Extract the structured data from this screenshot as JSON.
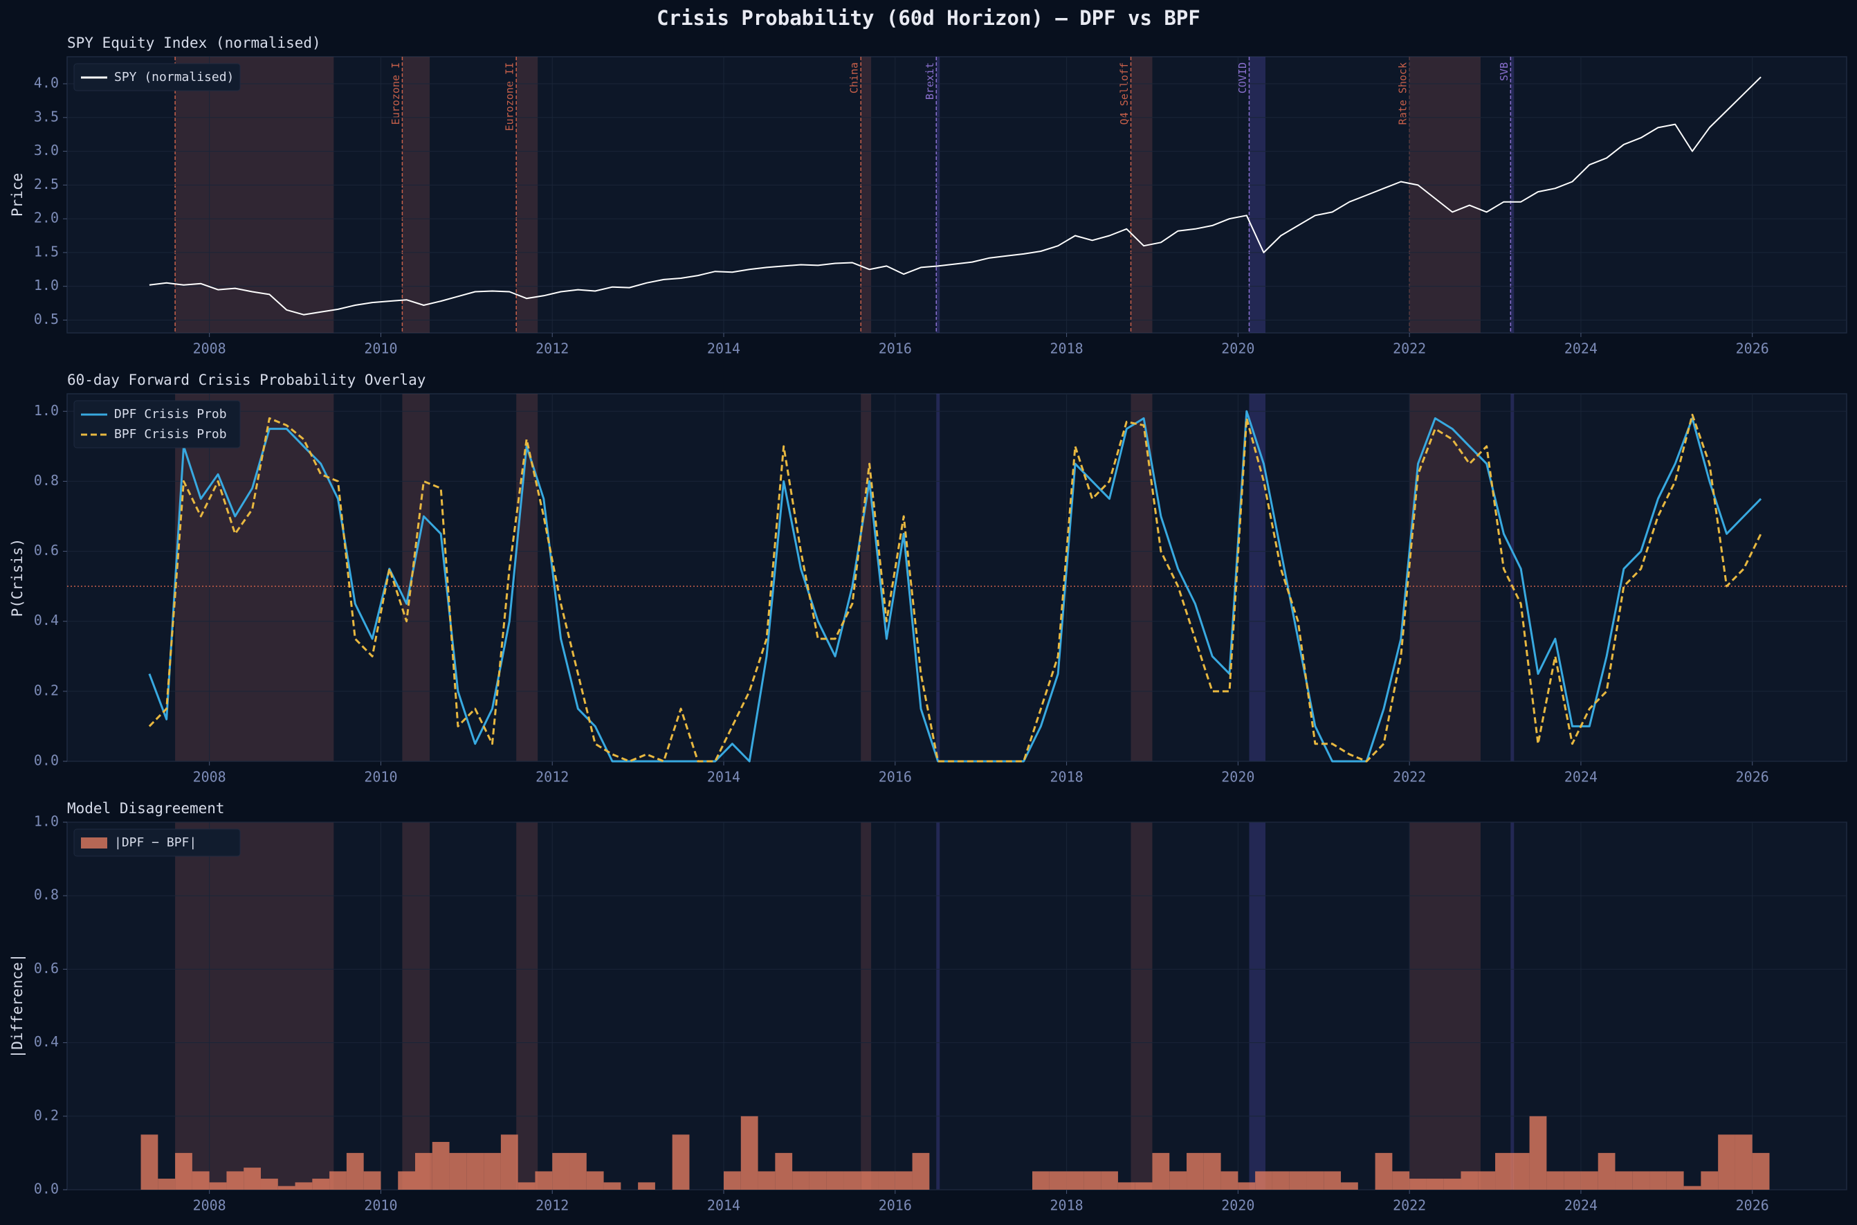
{
  "title": "Crisis Probability (60d Horizon)  —  DPF vs BPF",
  "crises": [
    {
      "start": 2007.6,
      "end": 2009.45,
      "color": "#c8604a"
    },
    {
      "start": 2010.25,
      "end": 2010.57,
      "label": "Eurozone I",
      "color": "#c8604a"
    },
    {
      "start": 2011.58,
      "end": 2011.83,
      "label": "Eurozone II",
      "color": "#c8604a"
    },
    {
      "start": 2015.6,
      "end": 2015.72,
      "label": "China",
      "color": "#c8604a"
    },
    {
      "start": 2016.48,
      "end": 2016.52,
      "label": "Brexit",
      "color": "#8a70d0"
    },
    {
      "start": 2018.75,
      "end": 2019.0,
      "label": "Q4 Selloff",
      "color": "#c8604a"
    },
    {
      "start": 2020.13,
      "end": 2020.32,
      "label": "COVID",
      "color": "#8a70d0"
    },
    {
      "start": 2022.0,
      "end": 2022.83,
      "label": "Rate Shock",
      "color": "#c8604a"
    },
    {
      "start": 2023.18,
      "end": 2023.22,
      "label": "SVB",
      "color": "#8a70d0"
    }
  ],
  "chart_data": [
    {
      "type": "line",
      "title": "SPY Equity Index (normalised)",
      "ylabel": "Price",
      "legend": "upper left",
      "grid": true,
      "crisis_labels": true,
      "xlim": [
        2006.34,
        2027.1
      ],
      "xticks": [
        2008,
        2010,
        2012,
        2014,
        2016,
        2018,
        2020,
        2022,
        2024,
        2026
      ],
      "ylim": [
        0.31,
        4.4
      ],
      "yticks": [
        {
          "value": 0.5,
          "label": "0.5"
        },
        {
          "value": 1,
          "label": "1.0"
        },
        {
          "value": 1.5,
          "label": "1.5"
        },
        {
          "value": 2,
          "label": "2.0"
        },
        {
          "value": 2.5,
          "label": "2.5"
        },
        {
          "value": 3,
          "label": "3.0"
        },
        {
          "value": 3.5,
          "label": "3.5"
        },
        {
          "value": 4,
          "label": "4.0"
        }
      ],
      "x": [
        2007.3,
        2007.5,
        2007.7,
        2007.9,
        2008.1,
        2008.3,
        2008.5,
        2008.7,
        2008.9,
        2009.1,
        2009.3,
        2009.5,
        2009.7,
        2009.9,
        2010.1,
        2010.3,
        2010.5,
        2010.7,
        2010.9,
        2011.1,
        2011.3,
        2011.5,
        2011.7,
        2011.9,
        2012.1,
        2012.3,
        2012.5,
        2012.7,
        2012.9,
        2013.1,
        2013.3,
        2013.5,
        2013.7,
        2013.9,
        2014.1,
        2014.3,
        2014.5,
        2014.7,
        2014.9,
        2015.1,
        2015.3,
        2015.5,
        2015.7,
        2015.9,
        2016.1,
        2016.3,
        2016.5,
        2016.7,
        2016.9,
        2017.1,
        2017.3,
        2017.5,
        2017.7,
        2017.9,
        2018.1,
        2018.3,
        2018.5,
        2018.7,
        2018.9,
        2019.1,
        2019.3,
        2019.5,
        2019.7,
        2019.9,
        2020.1,
        2020.3,
        2020.5,
        2020.7,
        2020.9,
        2021.1,
        2021.3,
        2021.5,
        2021.7,
        2021.9,
        2022.1,
        2022.3,
        2022.5,
        2022.7,
        2022.9,
        2023.1,
        2023.3,
        2023.5,
        2023.7,
        2023.9,
        2024.1,
        2024.3,
        2024.5,
        2024.7,
        2024.9,
        2025.1,
        2025.3,
        2025.5,
        2025.7,
        2025.9,
        2026.1
      ],
      "series": [
        {
          "name": "SPY (normalised)",
          "color": "#ffffff",
          "values": [
            1.02,
            1.05,
            1.02,
            1.04,
            0.95,
            0.97,
            0.92,
            0.88,
            0.65,
            0.58,
            0.62,
            0.66,
            0.72,
            0.76,
            0.78,
            0.8,
            0.72,
            0.78,
            0.85,
            0.92,
            0.93,
            0.92,
            0.82,
            0.86,
            0.92,
            0.95,
            0.93,
            0.99,
            0.98,
            1.05,
            1.1,
            1.12,
            1.16,
            1.22,
            1.21,
            1.25,
            1.28,
            1.3,
            1.32,
            1.31,
            1.34,
            1.35,
            1.25,
            1.3,
            1.18,
            1.28,
            1.3,
            1.33,
            1.36,
            1.42,
            1.45,
            1.48,
            1.52,
            1.6,
            1.75,
            1.68,
            1.75,
            1.85,
            1.6,
            1.65,
            1.82,
            1.85,
            1.9,
            2.0,
            2.05,
            1.5,
            1.75,
            1.9,
            2.05,
            2.1,
            2.25,
            2.35,
            2.45,
            2.55,
            2.5,
            2.3,
            2.1,
            2.2,
            2.1,
            2.25,
            2.25,
            2.4,
            2.45,
            2.55,
            2.8,
            2.9,
            3.1,
            3.2,
            3.35,
            3.4,
            3.0,
            3.35,
            3.6,
            3.85,
            4.1
          ]
        }
      ]
    },
    {
      "type": "line",
      "title": "60-day Forward Crisis Probability Overlay",
      "ylabel": "P(Crisis)",
      "legend": "upper left",
      "grid": true,
      "threshold": 0.5,
      "threshold_color": "#c8604a",
      "xlim": [
        2006.34,
        2027.1
      ],
      "xticks": [
        2008,
        2010,
        2012,
        2014,
        2016,
        2018,
        2020,
        2022,
        2024,
        2026
      ],
      "ylim": [
        0,
        1.05
      ],
      "yticks": [
        {
          "value": 0,
          "label": "0.0"
        },
        {
          "value": 0.2,
          "label": "0.2"
        },
        {
          "value": 0.4,
          "label": "0.4"
        },
        {
          "value": 0.6,
          "label": "0.6"
        },
        {
          "value": 0.8,
          "label": "0.8"
        },
        {
          "value": 1,
          "label": "1.0"
        }
      ],
      "x": [
        2007.3,
        2007.5,
        2007.7,
        2007.9,
        2008.1,
        2008.3,
        2008.5,
        2008.7,
        2008.9,
        2009.1,
        2009.3,
        2009.5,
        2009.7,
        2009.9,
        2010.1,
        2010.3,
        2010.5,
        2010.7,
        2010.9,
        2011.1,
        2011.3,
        2011.5,
        2011.7,
        2011.9,
        2012.1,
        2012.3,
        2012.5,
        2012.7,
        2012.9,
        2013.1,
        2013.3,
        2013.5,
        2013.7,
        2013.9,
        2014.1,
        2014.3,
        2014.5,
        2014.7,
        2014.9,
        2015.1,
        2015.3,
        2015.5,
        2015.7,
        2015.9,
        2016.1,
        2016.3,
        2016.5,
        2016.7,
        2016.9,
        2017.1,
        2017.3,
        2017.5,
        2017.7,
        2017.9,
        2018.1,
        2018.3,
        2018.5,
        2018.7,
        2018.9,
        2019.1,
        2019.3,
        2019.5,
        2019.7,
        2019.9,
        2020.1,
        2020.3,
        2020.5,
        2020.7,
        2020.9,
        2021.1,
        2021.3,
        2021.5,
        2021.7,
        2021.9,
        2022.1,
        2022.3,
        2022.5,
        2022.7,
        2022.9,
        2023.1,
        2023.3,
        2023.5,
        2023.7,
        2023.9,
        2024.1,
        2024.3,
        2024.5,
        2024.7,
        2024.9,
        2025.1,
        2025.3,
        2025.5,
        2025.7,
        2025.9,
        2026.1
      ],
      "series": [
        {
          "name": "DPF Crisis Prob",
          "color": "#38a9e0",
          "linestyle": "solid",
          "values": [
            0.25,
            0.12,
            0.9,
            0.75,
            0.82,
            0.7,
            0.78,
            0.95,
            0.95,
            0.9,
            0.85,
            0.75,
            0.45,
            0.35,
            0.55,
            0.45,
            0.7,
            0.65,
            0.2,
            0.05,
            0.15,
            0.4,
            0.9,
            0.75,
            0.35,
            0.15,
            0.1,
            0,
            0,
            0,
            0,
            0,
            0,
            0,
            0.05,
            0,
            0.3,
            0.8,
            0.55,
            0.4,
            0.3,
            0.5,
            0.8,
            0.35,
            0.65,
            0.15,
            0,
            0,
            0,
            0,
            0,
            0,
            0.1,
            0.25,
            0.85,
            0.8,
            0.75,
            0.95,
            0.98,
            0.7,
            0.55,
            0.45,
            0.3,
            0.25,
            1,
            0.85,
            0.6,
            0.35,
            0.1,
            0,
            0,
            0,
            0.15,
            0.35,
            0.85,
            0.98,
            0.95,
            0.9,
            0.85,
            0.65,
            0.55,
            0.25,
            0.35,
            0.1,
            0.1,
            0.3,
            0.55,
            0.6,
            0.75,
            0.85,
            0.98,
            0.8,
            0.65,
            0.7,
            0.75
          ]
        },
        {
          "name": "BPF Crisis Prob",
          "color": "#e8b840",
          "linestyle": "dashed",
          "values": [
            0.1,
            0.15,
            0.8,
            0.7,
            0.8,
            0.65,
            0.72,
            0.98,
            0.96,
            0.92,
            0.82,
            0.8,
            0.35,
            0.3,
            0.55,
            0.4,
            0.8,
            0.78,
            0.1,
            0.15,
            0.05,
            0.55,
            0.92,
            0.7,
            0.45,
            0.25,
            0.05,
            0.02,
            0,
            0.02,
            0,
            0.15,
            0,
            0,
            0.1,
            0.2,
            0.35,
            0.9,
            0.6,
            0.35,
            0.35,
            0.45,
            0.85,
            0.4,
            0.7,
            0.25,
            0,
            0,
            0,
            0,
            0,
            0,
            0.15,
            0.3,
            0.9,
            0.75,
            0.8,
            0.97,
            0.96,
            0.6,
            0.5,
            0.35,
            0.2,
            0.2,
            0.98,
            0.8,
            0.55,
            0.4,
            0.05,
            0.05,
            0.02,
            0,
            0.05,
            0.3,
            0.82,
            0.95,
            0.92,
            0.85,
            0.9,
            0.55,
            0.45,
            0.05,
            0.3,
            0.05,
            0.15,
            0.2,
            0.5,
            0.55,
            0.7,
            0.8,
            0.99,
            0.85,
            0.5,
            0.55,
            0.65
          ]
        }
      ]
    },
    {
      "type": "bar",
      "title": "Model Disagreement",
      "ylabel": "|Difference|",
      "legend": "upper left",
      "grid": true,
      "xlim": [
        2006.34,
        2027.1
      ],
      "xticks": [
        2008,
        2010,
        2012,
        2014,
        2016,
        2018,
        2020,
        2022,
        2024,
        2026
      ],
      "ylim": [
        0,
        1
      ],
      "yticks": [
        {
          "value": 0,
          "label": "0.0"
        },
        {
          "value": 0.2,
          "label": "0.2"
        },
        {
          "value": 0.4,
          "label": "0.4"
        },
        {
          "value": 0.6,
          "label": "0.6"
        },
        {
          "value": 0.8,
          "label": "0.8"
        },
        {
          "value": 1,
          "label": "1.0"
        }
      ],
      "x": [
        2007.3,
        2007.5,
        2007.7,
        2007.9,
        2008.1,
        2008.3,
        2008.5,
        2008.7,
        2008.9,
        2009.1,
        2009.3,
        2009.5,
        2009.7,
        2009.9,
        2010.1,
        2010.3,
        2010.5,
        2010.7,
        2010.9,
        2011.1,
        2011.3,
        2011.5,
        2011.7,
        2011.9,
        2012.1,
        2012.3,
        2012.5,
        2012.7,
        2012.9,
        2013.1,
        2013.3,
        2013.5,
        2013.7,
        2013.9,
        2014.1,
        2014.3,
        2014.5,
        2014.7,
        2014.9,
        2015.1,
        2015.3,
        2015.5,
        2015.7,
        2015.9,
        2016.1,
        2016.3,
        2016.5,
        2016.7,
        2016.9,
        2017.1,
        2017.3,
        2017.5,
        2017.7,
        2017.9,
        2018.1,
        2018.3,
        2018.5,
        2018.7,
        2018.9,
        2019.1,
        2019.3,
        2019.5,
        2019.7,
        2019.9,
        2020.1,
        2020.3,
        2020.5,
        2020.7,
        2020.9,
        2021.1,
        2021.3,
        2021.5,
        2021.7,
        2021.9,
        2022.1,
        2022.3,
        2022.5,
        2022.7,
        2022.9,
        2023.1,
        2023.3,
        2023.5,
        2023.7,
        2023.9,
        2024.1,
        2024.3,
        2024.5,
        2024.7,
        2024.9,
        2025.1,
        2025.3,
        2025.5,
        2025.7,
        2025.9,
        2026.1
      ],
      "series": [
        {
          "name": "|DPF − BPF|",
          "color": "#e07a5f",
          "values": [
            0.15,
            0.03,
            0.1,
            0.05,
            0.02,
            0.05,
            0.06,
            0.03,
            0.01,
            0.02,
            0.03,
            0.05,
            0.1,
            0.05,
            0,
            0.05,
            0.1,
            0.13,
            0.1,
            0.1,
            0.1,
            0.15,
            0.02,
            0.05,
            0.1,
            0.1,
            0.05,
            0.02,
            0,
            0.02,
            0,
            0.15,
            0,
            0,
            0.05,
            0.2,
            0.05,
            0.1,
            0.05,
            0.05,
            0.05,
            0.05,
            0.05,
            0.05,
            0.05,
            0.1,
            0,
            0,
            0,
            0,
            0,
            0,
            0.05,
            0.05,
            0.05,
            0.05,
            0.05,
            0.02,
            0.02,
            0.1,
            0.05,
            0.1,
            0.1,
            0.05,
            0.02,
            0.05,
            0.05,
            0.05,
            0.05,
            0.05,
            0.02,
            0,
            0.1,
            0.05,
            0.03,
            0.03,
            0.03,
            0.05,
            0.05,
            0.1,
            0.1,
            0.2,
            0.05,
            0.05,
            0.05,
            0.1,
            0.05,
            0.05,
            0.05,
            0.05,
            0.01,
            0.05,
            0.15,
            0.15,
            0.1
          ]
        }
      ]
    }
  ]
}
